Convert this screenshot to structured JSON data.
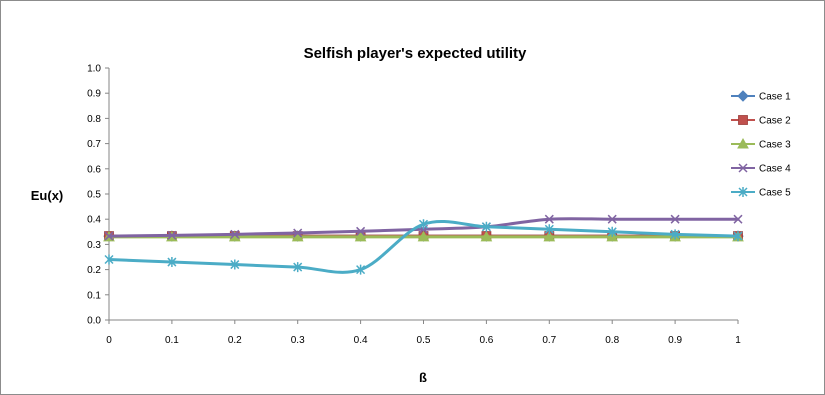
{
  "chart_data": {
    "type": "line",
    "title": "Selfish player's expected utility",
    "xlabel": "ß",
    "ylabel": "Eu(x)",
    "x": [
      0,
      0.1,
      0.2,
      0.3,
      0.4,
      0.5,
      0.6,
      0.7,
      0.8,
      0.9,
      1
    ],
    "x_tick_labels": [
      "0",
      "0.1",
      "0.2",
      "0.3",
      "0.4",
      "0.5",
      "0.6",
      "0.7",
      "0.8",
      "0.9",
      "1"
    ],
    "y_tick_labels": [
      "0.0",
      "0.1",
      "0.2",
      "0.3",
      "0.4",
      "0.5",
      "0.6",
      "0.7",
      "0.8",
      "0.9",
      "1.0"
    ],
    "xlim": [
      0,
      1
    ],
    "ylim": [
      0,
      1
    ],
    "grid": false,
    "legend_position": "right",
    "smoothed": true,
    "series": [
      {
        "name": "Case 1",
        "color": "#4f81bd",
        "marker": "diamond",
        "values": [
          0.333,
          0.333,
          0.333,
          0.333,
          0.333,
          0.333,
          0.333,
          0.333,
          0.333,
          0.333,
          0.333
        ]
      },
      {
        "name": "Case 2",
        "color": "#c0504d",
        "marker": "square",
        "values": [
          0.333,
          0.333,
          0.333,
          0.333,
          0.333,
          0.333,
          0.333,
          0.333,
          0.333,
          0.333,
          0.333
        ]
      },
      {
        "name": "Case 3",
        "color": "#9bbb59",
        "marker": "triangle",
        "values": [
          0.33,
          0.33,
          0.33,
          0.33,
          0.33,
          0.33,
          0.33,
          0.33,
          0.33,
          0.33,
          0.33
        ]
      },
      {
        "name": "Case 4",
        "color": "#8064a2",
        "marker": "x",
        "values": [
          0.333,
          0.336,
          0.34,
          0.345,
          0.352,
          0.36,
          0.37,
          0.4,
          0.4,
          0.4,
          0.4
        ]
      },
      {
        "name": "Case 5",
        "color": "#4bacc6",
        "marker": "star",
        "values": [
          0.24,
          0.23,
          0.22,
          0.21,
          0.2,
          0.38,
          0.37,
          0.36,
          0.35,
          0.34,
          0.333
        ]
      }
    ]
  }
}
